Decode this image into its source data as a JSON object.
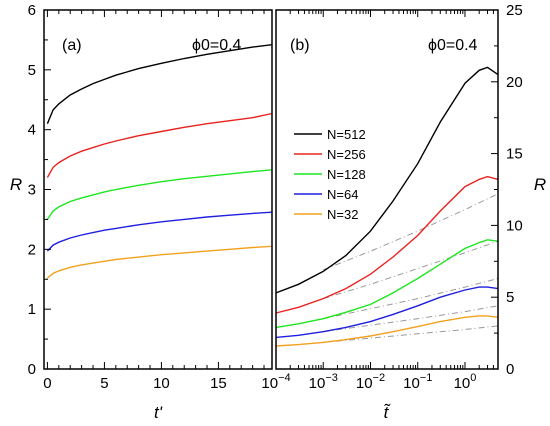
{
  "chart_data": [
    {
      "type": "line",
      "panel_label": "(a)",
      "annotation": "ϕ0=0.4",
      "xlabel": "t'",
      "ylabel": "R",
      "xlim": [
        -0.3,
        19.7
      ],
      "ylim": [
        0,
        6
      ],
      "xticks": [
        0,
        5,
        10,
        15
      ],
      "yticks": [
        0,
        1,
        2,
        3,
        4,
        5,
        6
      ],
      "grid": false,
      "series": [
        {
          "name": "N=512",
          "color": "#000000",
          "x": [
            0,
            0.5,
            1,
            2,
            3,
            4,
            5,
            6,
            8,
            10,
            12,
            14,
            16,
            18,
            19.7
          ],
          "y": [
            4.1,
            4.33,
            4.43,
            4.58,
            4.68,
            4.77,
            4.84,
            4.91,
            5.02,
            5.11,
            5.19,
            5.26,
            5.32,
            5.38,
            5.42
          ]
        },
        {
          "name": "N=256",
          "color": "#e8231f",
          "x": [
            0,
            0.5,
            1,
            2,
            3,
            4,
            5,
            6,
            8,
            10,
            12,
            14,
            16,
            18,
            19.7
          ],
          "y": [
            3.2,
            3.37,
            3.45,
            3.56,
            3.64,
            3.7,
            3.76,
            3.81,
            3.9,
            3.97,
            4.04,
            4.1,
            4.15,
            4.2,
            4.27
          ]
        },
        {
          "name": "N=128",
          "color": "#1ee61e",
          "x": [
            0,
            0.5,
            1,
            2,
            3,
            4,
            5,
            6,
            8,
            10,
            12,
            14,
            16,
            18,
            19.7
          ],
          "y": [
            2.5,
            2.64,
            2.71,
            2.8,
            2.86,
            2.91,
            2.96,
            3.0,
            3.07,
            3.13,
            3.18,
            3.22,
            3.26,
            3.3,
            3.33
          ]
        },
        {
          "name": "N=64",
          "color": "#1f1fe0",
          "x": [
            0,
            0.5,
            1,
            2,
            3,
            4,
            5,
            6,
            8,
            10,
            12,
            14,
            16,
            18,
            19.7
          ],
          "y": [
            1.97,
            2.07,
            2.12,
            2.19,
            2.24,
            2.28,
            2.32,
            2.35,
            2.41,
            2.46,
            2.5,
            2.54,
            2.57,
            2.6,
            2.62
          ]
        },
        {
          "name": "N=32",
          "color": "#f2a11f",
          "x": [
            0,
            0.5,
            1,
            2,
            3,
            4,
            5,
            6,
            8,
            10,
            12,
            14,
            16,
            18,
            19.7
          ],
          "y": [
            1.52,
            1.6,
            1.64,
            1.7,
            1.74,
            1.77,
            1.8,
            1.83,
            1.87,
            1.91,
            1.94,
            1.97,
            2.0,
            2.03,
            2.05
          ]
        }
      ]
    },
    {
      "type": "line",
      "panel_label": "(b)",
      "annotation": "ϕ0=0.4",
      "xlabel": "t̃",
      "ylabel": "R",
      "x_scale": "log",
      "xlim": [
        0.0001,
        5
      ],
      "ylim": [
        0,
        25
      ],
      "xtick_values": [
        0.0001,
        0.001,
        0.01,
        0.1,
        1
      ],
      "xticks": [
        "10−4",
        "10−3",
        "10−2",
        "10−1",
        "100"
      ],
      "yticks": [
        0,
        5,
        10,
        15,
        20,
        25
      ],
      "grid": false,
      "legend_position": "upper-left",
      "legend": [
        "N=512",
        "N=256",
        "N=128",
        "N=64",
        "N=32"
      ],
      "series": [
        {
          "name": "N=512",
          "color": "#000000",
          "x": [
            0.0001,
            0.0003,
            0.001,
            0.003,
            0.01,
            0.03,
            0.1,
            0.3,
            1,
            2,
            3,
            5
          ],
          "y": [
            5.3,
            5.9,
            6.8,
            7.9,
            9.6,
            11.7,
            14.3,
            17.2,
            19.9,
            20.8,
            21.0,
            20.5
          ]
        },
        {
          "name": "N=256",
          "color": "#e8231f",
          "x": [
            0.0001,
            0.0003,
            0.001,
            0.003,
            0.01,
            0.03,
            0.1,
            0.3,
            1,
            2,
            3,
            5
          ],
          "y": [
            3.9,
            4.3,
            4.9,
            5.6,
            6.6,
            7.8,
            9.3,
            11.0,
            12.7,
            13.2,
            13.4,
            13.2
          ]
        },
        {
          "name": "N=128",
          "color": "#1ee61e",
          "x": [
            0.0001,
            0.0003,
            0.001,
            0.003,
            0.01,
            0.03,
            0.1,
            0.3,
            1,
            2,
            3,
            5
          ],
          "y": [
            2.9,
            3.15,
            3.5,
            3.95,
            4.5,
            5.3,
            6.3,
            7.3,
            8.4,
            8.8,
            9.0,
            8.9
          ]
        },
        {
          "name": "N=64",
          "color": "#1f1fe0",
          "x": [
            0.0001,
            0.0003,
            0.001,
            0.003,
            0.01,
            0.03,
            0.1,
            0.3,
            1,
            2,
            3,
            5
          ],
          "y": [
            2.2,
            2.35,
            2.6,
            2.9,
            3.3,
            3.8,
            4.4,
            5.0,
            5.5,
            5.7,
            5.7,
            5.6
          ]
        },
        {
          "name": "N=32",
          "color": "#f2a11f",
          "x": [
            0.0001,
            0.0003,
            0.001,
            0.003,
            0.01,
            0.03,
            0.1,
            0.3,
            1,
            2,
            3,
            5
          ],
          "y": [
            1.6,
            1.7,
            1.85,
            2.05,
            2.3,
            2.6,
            2.95,
            3.3,
            3.6,
            3.7,
            3.7,
            3.6
          ]
        }
      ],
      "reference_lines": [
        {
          "color": "#999999",
          "x": [
            0.001,
            0.01,
            0.1,
            1,
            5
          ],
          "y": [
            6.9,
            8.2,
            9.6,
            11.1,
            12.2
          ]
        },
        {
          "color": "#999999",
          "x": [
            0.001,
            0.01,
            0.1,
            1,
            5
          ],
          "y": [
            4.9,
            5.9,
            7.0,
            8.1,
            8.9
          ]
        },
        {
          "color": "#999999",
          "x": [
            0.001,
            0.01,
            0.1,
            1,
            5
          ],
          "y": [
            3.5,
            4.2,
            4.9,
            5.7,
            6.3
          ]
        },
        {
          "color": "#999999",
          "x": [
            0.001,
            0.01,
            0.1,
            1,
            5
          ],
          "y": [
            2.6,
            3.05,
            3.5,
            4.0,
            4.4
          ]
        },
        {
          "color": "#999999",
          "x": [
            0.001,
            0.01,
            0.1,
            1,
            5
          ],
          "y": [
            1.85,
            2.15,
            2.45,
            2.75,
            3.0
          ]
        }
      ]
    }
  ]
}
